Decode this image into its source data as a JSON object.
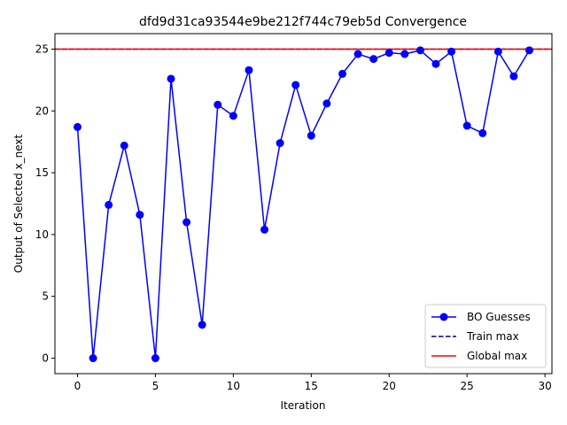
{
  "chart_data": {
    "type": "line",
    "title": "dfd9d31ca93544e9be212f744c79eb5d Convergence",
    "xlabel": "Iteration",
    "ylabel": "Output of Selected x_next",
    "xlim": [
      -1.45,
      30.45
    ],
    "ylim": [
      -1.25,
      26.25
    ],
    "xticks": [
      0,
      5,
      10,
      15,
      20,
      25,
      30
    ],
    "yticks": [
      0,
      5,
      10,
      15,
      20,
      25
    ],
    "grid": false,
    "legend_position": "bottom-right",
    "series": [
      {
        "name": "BO Guesses",
        "color": "#0000ff",
        "marker": "circle",
        "x": [
          0,
          1,
          2,
          3,
          4,
          5,
          6,
          7,
          8,
          9,
          10,
          11,
          12,
          13,
          14,
          15,
          16,
          17,
          18,
          19,
          20,
          21,
          22,
          23,
          24,
          25,
          26,
          27,
          28,
          29
        ],
        "y": [
          18.7,
          0.0,
          12.4,
          17.2,
          11.6,
          0.0,
          22.6,
          11.0,
          2.7,
          20.5,
          19.6,
          23.3,
          10.4,
          17.4,
          22.1,
          18.0,
          20.6,
          23.0,
          24.6,
          24.2,
          24.7,
          24.6,
          24.9,
          23.8,
          24.8,
          18.8,
          18.2,
          24.8,
          22.8,
          24.9
        ]
      },
      {
        "name": "Train max",
        "color": "#000080",
        "style": "dashed",
        "y": 25.0
      },
      {
        "name": "Global max",
        "color": "#ff0000",
        "style": "solid",
        "y": 25.0
      }
    ]
  }
}
